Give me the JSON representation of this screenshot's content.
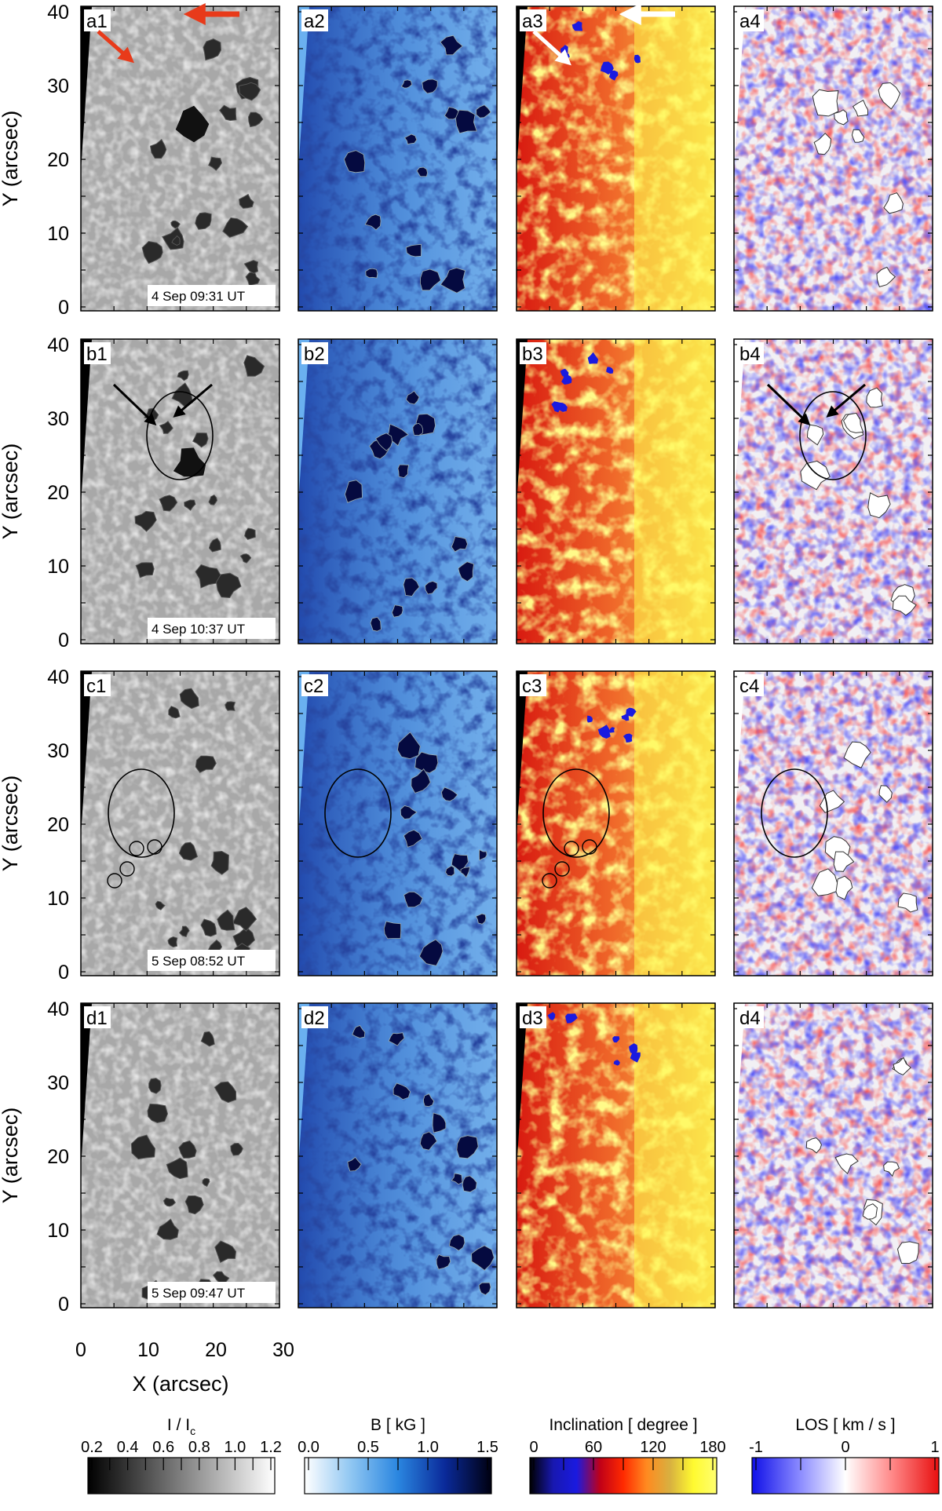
{
  "rows": [
    {
      "id": "a",
      "panels": [
        "a1",
        "a2",
        "a3",
        "a4"
      ],
      "date": "4 Sep 09:31 UT"
    },
    {
      "id": "b",
      "panels": [
        "b1",
        "b2",
        "b3",
        "b4"
      ],
      "date": "4 Sep 10:37 UT"
    },
    {
      "id": "c",
      "panels": [
        "c1",
        "c2",
        "c3",
        "c4"
      ],
      "date": "5 Sep 08:52 UT"
    },
    {
      "id": "d",
      "panels": [
        "d1",
        "d2",
        "d3",
        "d4"
      ],
      "date": "5 Sep 09:47 UT"
    }
  ],
  "y_axis": {
    "title": "Y (arcsec)",
    "ticks": [
      "0",
      "10",
      "20",
      "30",
      "40"
    ]
  },
  "x_axis": {
    "title": "X (arcsec)",
    "ticks": [
      "0",
      "10",
      "20",
      "30"
    ]
  },
  "colorbars": [
    {
      "title": "I / I",
      "title_sub": "c",
      "ticks": [
        "0.2",
        "0.4",
        "0.6",
        "0.8",
        "1.0",
        "1.2"
      ],
      "colors": [
        "#000000",
        "#ffffff"
      ]
    },
    {
      "title": "B [ kG ]",
      "ticks": [
        "0.0",
        "0.5",
        "1.0",
        "1.5"
      ],
      "colors": [
        "#ffffff",
        "#8fc6f2",
        "#2a86e0",
        "#0a2a9a",
        "#000010"
      ]
    },
    {
      "title": "Inclination [ degree ]",
      "ticks": [
        "0",
        "60",
        "120",
        "180"
      ],
      "colors": [
        "#000000",
        "#1818b0",
        "#1a1ae0",
        "#c00018",
        "#ff2a00",
        "#ff8a20",
        "#d8b040",
        "#fffa30",
        "#ffff70"
      ]
    },
    {
      "title": "LOS [ km / s ]",
      "ticks": [
        "-1",
        "0",
        "1"
      ],
      "colors": [
        "#1010e8",
        "#8888ff",
        "#ffffff",
        "#ff8888",
        "#e81010"
      ]
    }
  ],
  "colors": {
    "intensity_base": "#a8a8a8",
    "field_base": "#6aa8e8",
    "inclination_base": "#ee6a2a",
    "los_base": "#f2f0f4",
    "arrow_red": "#e83a1a",
    "arrow_white": "#ffffff",
    "arrow_black": "#000000"
  }
}
